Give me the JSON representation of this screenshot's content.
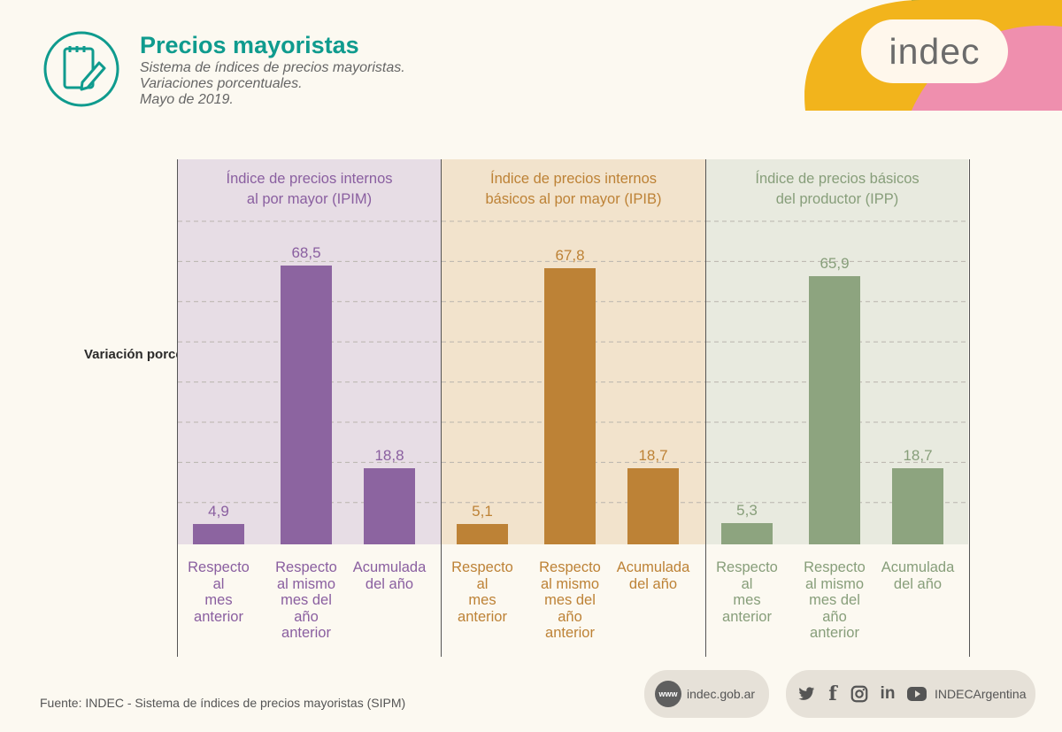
{
  "header": {
    "title": "Precios mayoristas",
    "subtitle_lines": [
      "Sistema de índices de precios mayoristas.",
      "Variaciones porcentuales.",
      "Mayo de 2019."
    ]
  },
  "brand": {
    "name": "indec"
  },
  "chart_data": {
    "type": "bar",
    "title": "Precios mayoristas",
    "ylabel": "Variación porcentual",
    "ylim": [
      0,
      80
    ],
    "grid": true,
    "categories": [
      "Respecto al mes anterior",
      "Respecto al mismo mes del año anterior",
      "Acumulada del año"
    ],
    "category_lines": [
      [
        "Respecto",
        "al",
        "mes",
        "anterior"
      ],
      [
        "Respecto",
        "al mismo",
        "mes del",
        "año",
        "anterior"
      ],
      [
        "Acumulada",
        "del año"
      ]
    ],
    "series": [
      {
        "name": "Índice de precios internos al por mayor (IPIM)",
        "title_lines": [
          "Índice de precios internos",
          "al por mayor (IPIM)"
        ],
        "values": [
          4.9,
          68.5,
          18.8
        ],
        "labels": [
          "4,9",
          "68,5",
          "18,8"
        ],
        "color": "#8c64a0",
        "bg": "#e7dde5",
        "text_color": "#8a5fa0"
      },
      {
        "name": "Índice de precios internos básicos al por mayor (IPIB)",
        "title_lines": [
          "Índice de precios internos",
          "básicos al por mayor (IPIB)"
        ],
        "values": [
          5.1,
          67.8,
          18.7
        ],
        "labels": [
          "5,1",
          "67,8",
          "18,7"
        ],
        "color": "#bd8236",
        "bg": "#f2e3cc",
        "text_color": "#bd8236"
      },
      {
        "name": "Índice de precios básicos del productor (IPP)",
        "title_lines": [
          "Índice de precios básicos",
          "del productor (IPP)"
        ],
        "values": [
          5.3,
          65.9,
          18.7
        ],
        "labels": [
          "5,3",
          "65,9",
          "18,7"
        ],
        "color": "#8da47f",
        "bg": "#e8eadf",
        "text_color": "#879e7a"
      }
    ]
  },
  "footer": {
    "source": "Fuente: INDEC - Sistema de índices de precios mayoristas (SIPM)",
    "web_icon": "www",
    "website": "indec.gob.ar",
    "social_handle": "INDECArgentina",
    "social_icons": [
      "twitter-icon",
      "facebook-icon",
      "instagram-icon",
      "linkedin-icon",
      "youtube-icon"
    ]
  }
}
